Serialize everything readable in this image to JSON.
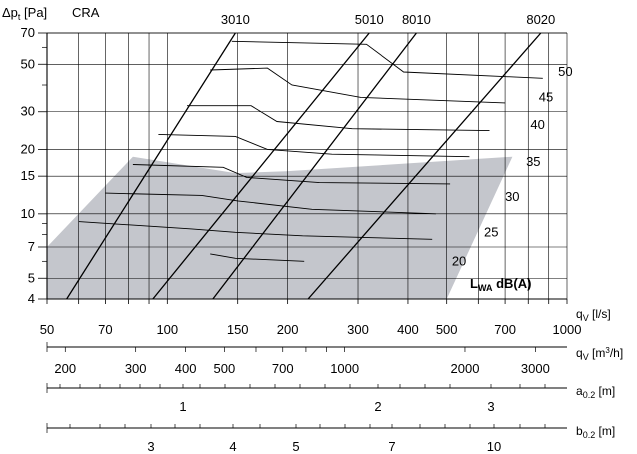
{
  "chart_data": {
    "type": "line",
    "title": "CRA",
    "y_axis": {
      "label_main": "Δp",
      "label_sub": "t",
      "label_unit": "[Pa]",
      "scale": "log",
      "range": [
        4,
        70
      ],
      "ticks": [
        4,
        5,
        7,
        10,
        15,
        20,
        30,
        50,
        70
      ],
      "minor_ticks": [
        6,
        8,
        9,
        40,
        60
      ]
    },
    "x_axis": {
      "label_main": "q",
      "label_sub": "V",
      "label_unit": "[l/s]",
      "scale": "log",
      "range": [
        50,
        1000
      ],
      "ticks": [
        50,
        70,
        100,
        150,
        200,
        300,
        400,
        500,
        700,
        1000
      ],
      "grid": [
        50,
        60,
        70,
        80,
        90,
        100,
        150,
        200,
        300,
        400,
        500,
        600,
        700,
        800,
        900,
        1000
      ]
    },
    "secondary_axes": [
      {
        "label_main": "q",
        "label_sub": "V",
        "label_unit": "[m",
        "label_sup": "3",
        "label_end": "/h]",
        "ticks": [
          {
            "label": "200",
            "value": 200
          },
          {
            "label": "300",
            "value": 300
          },
          {
            "label": "400",
            "value": 400
          },
          {
            "label": "500",
            "value": 500
          },
          {
            "label": "700",
            "value": 700
          },
          {
            "label": "1000",
            "value": 1000
          },
          {
            "label": "2000",
            "value": 2000
          },
          {
            "label": "3000",
            "value": 3000
          }
        ]
      },
      {
        "label_main": "a",
        "label_sub": "0.2",
        "label_unit": "[m]",
        "ticks": [
          {
            "label": "1",
            "value": 1
          },
          {
            "label": "2",
            "value": 2
          },
          {
            "label": "3",
            "value": 3
          }
        ]
      },
      {
        "label_main": "b",
        "label_sub": "0.2",
        "label_unit": "[m]",
        "ticks": [
          {
            "label": "3",
            "value": 3
          },
          {
            "label": "4",
            "value": 4
          },
          {
            "label": "5",
            "value": 5
          },
          {
            "label": "7",
            "value": 7
          },
          {
            "label": "10",
            "value": 10
          }
        ]
      }
    ],
    "model_series": [
      {
        "name": "3010",
        "points": [
          [
            56,
            4
          ],
          [
            148,
            70
          ]
        ]
      },
      {
        "name": "5010",
        "points": [
          [
            92,
            4
          ],
          [
            320,
            70
          ]
        ]
      },
      {
        "name": "8010",
        "points": [
          [
            130,
            4
          ],
          [
            420,
            70
          ]
        ]
      },
      {
        "name": "8020",
        "points": [
          [
            225,
            4
          ],
          [
            860,
            70
          ]
        ]
      }
    ],
    "sound_levels": [
      {
        "label": "20",
        "value": 20,
        "label_at": [
          515,
          6.0
        ]
      },
      {
        "label": "25",
        "value": 25,
        "label_at": [
          620,
          8.2
        ]
      },
      {
        "label": "30",
        "value": 30,
        "label_at": [
          700,
          12.0
        ]
      },
      {
        "label": "35",
        "value": 35,
        "label_at": [
          790,
          17.5
        ]
      },
      {
        "label": "40",
        "value": 40,
        "label_at": [
          810,
          26.0
        ]
      },
      {
        "label": "45",
        "value": 45,
        "label_at": [
          850,
          35.0
        ]
      },
      {
        "label": "50",
        "value": 50,
        "label_at": [
          950,
          46.0
        ]
      }
    ],
    "sound_level_label": "L",
    "sound_level_sub": "WA",
    "sound_level_unit": "dB(A)",
    "shaded_region": [
      [
        50,
        4
      ],
      [
        50,
        7
      ],
      [
        82,
        18.5
      ],
      [
        148,
        15.5
      ],
      [
        198,
        15.8
      ],
      [
        730,
        18.5
      ],
      [
        500,
        4
      ]
    ],
    "contours": [
      {
        "points": [
          [
            128,
            6.5
          ],
          [
            148,
            6.2
          ],
          [
            220,
            6.0
          ]
        ]
      },
      {
        "points": [
          [
            60,
            9.2
          ],
          [
            115,
            8.5
          ],
          [
            148,
            8.2
          ],
          [
            218,
            7.9
          ],
          [
            460,
            7.6
          ]
        ]
      },
      {
        "points": [
          [
            70,
            12.5
          ],
          [
            122,
            12.2
          ],
          [
            150,
            11.5
          ],
          [
            230,
            10.5
          ],
          [
            470,
            10.0
          ]
        ]
      },
      {
        "points": [
          [
            82,
            17.0
          ],
          [
            138,
            16.5
          ],
          [
            158,
            14.8
          ],
          [
            240,
            14.0
          ],
          [
            510,
            13.8
          ]
        ]
      },
      {
        "points": [
          [
            95,
            23.5
          ],
          [
            148,
            23.0
          ],
          [
            178,
            20.0
          ],
          [
            258,
            19.0
          ],
          [
            570,
            18.5
          ]
        ]
      },
      {
        "points": [
          [
            112,
            32.0
          ],
          [
            162,
            32.0
          ],
          [
            188,
            27.0
          ],
          [
            290,
            25.0
          ],
          [
            640,
            24.5
          ]
        ]
      },
      {
        "points": [
          [
            128,
            47.0
          ],
          [
            178,
            48.0
          ],
          [
            205,
            40.0
          ],
          [
            305,
            35.0
          ],
          [
            700,
            33.0
          ]
        ]
      },
      {
        "points": [
          [
            145,
            64.0
          ],
          [
            315,
            62.0
          ],
          [
            390,
            46.0
          ],
          [
            870,
            43.0
          ]
        ]
      }
    ],
    "legend_position": "none",
    "grid": true
  }
}
